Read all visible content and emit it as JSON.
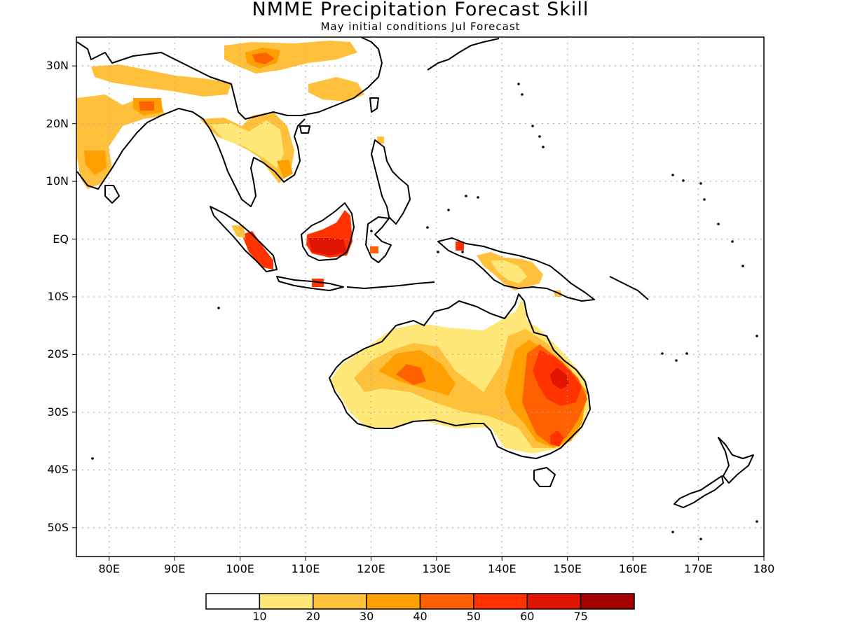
{
  "title": "NMME Precipitation Forecast Skill",
  "subtitle": "May initial conditions  Jul Forecast",
  "map": {
    "lon_range": [
      75,
      180
    ],
    "lat_range": [
      -55,
      35
    ],
    "grid": true,
    "lat_labels": [
      {
        "lat": 30,
        "text": "30N"
      },
      {
        "lat": 20,
        "text": "20N"
      },
      {
        "lat": 10,
        "text": "10N"
      },
      {
        "lat": 0,
        "text": "EQ"
      },
      {
        "lat": -10,
        "text": "10S"
      },
      {
        "lat": -20,
        "text": "20S"
      },
      {
        "lat": -30,
        "text": "30S"
      },
      {
        "lat": -40,
        "text": "40S"
      },
      {
        "lat": -50,
        "text": "50S"
      }
    ],
    "lon_labels": [
      {
        "lon": 80,
        "text": "80E"
      },
      {
        "lon": 90,
        "text": "90E"
      },
      {
        "lon": 100,
        "text": "100E"
      },
      {
        "lon": 110,
        "text": "110E"
      },
      {
        "lon": 120,
        "text": "120E"
      },
      {
        "lon": 130,
        "text": "130E"
      },
      {
        "lon": 140,
        "text": "140E"
      },
      {
        "lon": 150,
        "text": "150E"
      },
      {
        "lon": 160,
        "text": "160E"
      },
      {
        "lon": 170,
        "text": "170E"
      },
      {
        "lon": 180,
        "text": "180"
      }
    ],
    "coastline_color": "#000000",
    "grid_color": "#aaaaaa"
  },
  "colorbar": {
    "colors": [
      "#ffffff",
      "#ffe778",
      "#ffc03c",
      "#ffa000",
      "#ff6000",
      "#ff3200",
      "#e11400",
      "#a50000"
    ],
    "labels": [
      "10",
      "20",
      "30",
      "40",
      "50",
      "60",
      "75"
    ]
  }
}
